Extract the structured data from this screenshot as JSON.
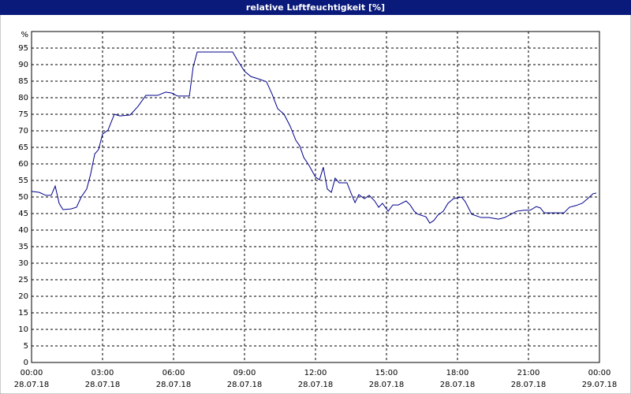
{
  "chart_data": {
    "type": "line",
    "title": "relative Luftfeuchtigkeit [%]",
    "ylabel": "%",
    "x": [
      0,
      0.33,
      0.6,
      0.83,
      1,
      1.17,
      1.33,
      1.67,
      1.9,
      2.1,
      2.33,
      2.5,
      2.67,
      2.83,
      3,
      3.23,
      3.5,
      3.73,
      4.17,
      4.5,
      4.83,
      5.33,
      5.67,
      5.93,
      6.17,
      6.67,
      6.83,
      7,
      7.5,
      8.5,
      8.67,
      9,
      9.27,
      9.67,
      9.93,
      10.17,
      10.4,
      10.67,
      10.93,
      11.17,
      11.33,
      11.5,
      11.73,
      12,
      12.17,
      12.33,
      12.5,
      12.67,
      12.83,
      13,
      13.33,
      13.5,
      13.67,
      13.83,
      14.07,
      14.27,
      14.5,
      14.67,
      14.83,
      15.07,
      15.27,
      15.5,
      15.83,
      16,
      16.17,
      16.33,
      16.67,
      16.83,
      17,
      17.17,
      17.4,
      17.6,
      17.83,
      18.17,
      18.33,
      18.6,
      19,
      19.33,
      19.73,
      20,
      20.27,
      20.5,
      20.83,
      21.07,
      21.33,
      21.5,
      21.67,
      22,
      22.5,
      22.73,
      23,
      23.27,
      23.5,
      23.73,
      23.87
    ],
    "series": [
      {
        "name": "relative Luftfeuchtigkeit",
        "color": "#00008b",
        "values": [
          51.7,
          51.4,
          50.5,
          50.5,
          53.3,
          48,
          46.2,
          46.4,
          46.9,
          50,
          52.4,
          57,
          63,
          64.3,
          69,
          70.2,
          75,
          74.5,
          74.8,
          77.4,
          80.7,
          80.7,
          81.7,
          81.4,
          80.5,
          80.5,
          89.3,
          93.8,
          93.8,
          93.8,
          91.7,
          88,
          86.4,
          85.5,
          84.8,
          81,
          76.7,
          75,
          71.4,
          67.1,
          65.5,
          62,
          59.5,
          56,
          55.2,
          59,
          52.4,
          51.4,
          55.7,
          54.3,
          54.3,
          51.2,
          48.3,
          50.7,
          49.5,
          50.5,
          48.8,
          46.9,
          48.1,
          45.7,
          47.6,
          47.6,
          48.8,
          47.6,
          45.7,
          44.8,
          44,
          42.1,
          42.9,
          44.5,
          45.7,
          48.1,
          49.5,
          50,
          48.6,
          44.8,
          43.8,
          43.8,
          43.3,
          43.8,
          44.8,
          45.7,
          46,
          46,
          47.1,
          46.7,
          45.2,
          45.2,
          45.2,
          46.9,
          47.4,
          48.1,
          49.5,
          51,
          51.2
        ]
      }
    ],
    "xlim": [
      0,
      24
    ],
    "xticks": [
      {
        "value": 0,
        "label": "00:00"
      },
      {
        "value": 3,
        "label": "03:00"
      },
      {
        "value": 6,
        "label": "06:00"
      },
      {
        "value": 9,
        "label": "09:00"
      },
      {
        "value": 12,
        "label": "12:00"
      },
      {
        "value": 15,
        "label": "15:00"
      },
      {
        "value": 18,
        "label": "18:00"
      },
      {
        "value": 21,
        "label": "21:00"
      },
      {
        "value": 24,
        "label": "00:00"
      }
    ],
    "xtick_dates": [
      "28.07.18",
      "28.07.18",
      "28.07.18",
      "28.07.18",
      "28.07.18",
      "28.07.18",
      "28.07.18",
      "28.07.18",
      "29.07.18"
    ],
    "ylim": [
      0,
      100
    ],
    "yticks": [
      0,
      5,
      10,
      15,
      20,
      25,
      30,
      35,
      40,
      45,
      50,
      55,
      60,
      65,
      70,
      75,
      80,
      85,
      90,
      95
    ],
    "grid": true
  }
}
